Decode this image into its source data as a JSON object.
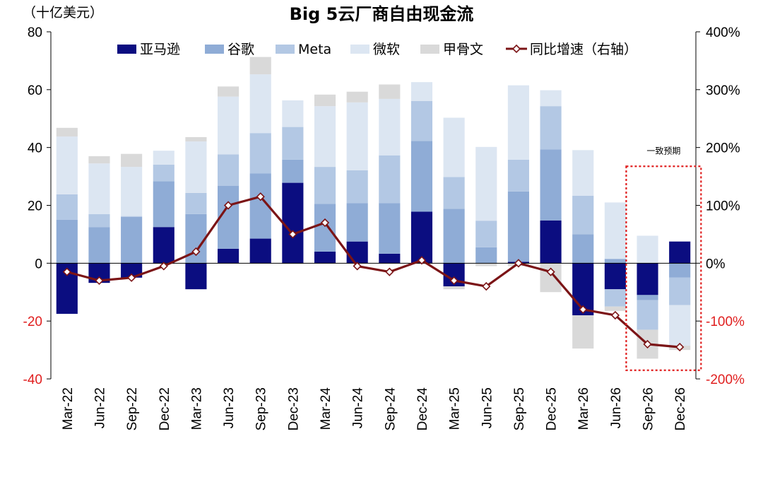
{
  "chart_data": {
    "type": "bar",
    "title": "Big 5云厂商自由现金流",
    "unit_label": "（十亿美元）",
    "categories": [
      "Mar-22",
      "Jun-22",
      "Sep-22",
      "Dec-22",
      "Mar-23",
      "Jun-23",
      "Sep-23",
      "Dec-23",
      "Mar-24",
      "Jun-24",
      "Sep-24",
      "Dec-24",
      "Mar-25",
      "Jun-25",
      "Sep-25",
      "Dec-25",
      "Mar-26",
      "Jun-26",
      "Sep-26",
      "Dec-26"
    ],
    "stacked": true,
    "series": [
      {
        "name": "亚马逊",
        "color": "#0b0d80",
        "values": [
          -17.5,
          -6.8,
          -5.0,
          12.5,
          -9.0,
          5.0,
          8.5,
          27.8,
          4.0,
          7.5,
          3.3,
          17.8,
          -8.0,
          0.0,
          0.5,
          14.8,
          -18.0,
          -9.0,
          -11.0,
          7.5
        ]
      },
      {
        "name": "谷歌",
        "color": "#8facd6",
        "values": [
          15.0,
          12.5,
          16.0,
          15.8,
          17.0,
          21.8,
          22.5,
          8.0,
          16.5,
          13.3,
          17.5,
          24.5,
          18.8,
          5.5,
          24.3,
          24.5,
          10.0,
          1.5,
          -1.8,
          -5.0
        ]
      },
      {
        "name": "Meta",
        "color": "#b3c8e4",
        "values": [
          8.8,
          4.5,
          0.3,
          5.8,
          7.3,
          10.8,
          14.0,
          11.3,
          12.8,
          11.3,
          16.5,
          13.8,
          11.0,
          9.2,
          11.0,
          15.0,
          13.3,
          -6.0,
          -10.2,
          -9.5
        ]
      },
      {
        "name": "微软",
        "color": "#dce6f2",
        "values": [
          20.0,
          17.5,
          17.0,
          4.8,
          17.8,
          20.0,
          20.3,
          9.2,
          21.0,
          23.5,
          19.5,
          6.5,
          20.5,
          25.5,
          25.7,
          5.5,
          15.8,
          19.5,
          9.5,
          -14.0
        ]
      },
      {
        "name": "甲骨文",
        "color": "#d9d9d9",
        "values": [
          3.0,
          2.5,
          4.5,
          -0.3,
          1.5,
          3.5,
          6.0,
          -0.3,
          4.0,
          3.7,
          5.0,
          -0.3,
          -1.0,
          -1.0,
          -1.0,
          -10.0,
          -11.5,
          -1.5,
          -10.0,
          -1.5
        ]
      }
    ],
    "line_series": {
      "name": "同比增速（右轴）",
      "axis": "right",
      "color": "#7b1416",
      "values": [
        -15,
        -30,
        -25,
        -5,
        20,
        100,
        115,
        50,
        70,
        -5,
        -15,
        5,
        -30,
        -40,
        0,
        -15,
        -80,
        -90,
        -140,
        -145
      ]
    },
    "y_left": {
      "min": -40,
      "max": 80,
      "ticks": [
        -40,
        -20,
        0,
        20,
        40,
        60,
        80
      ],
      "tick_labels": [
        "-40",
        "-20",
        "0",
        "20",
        "40",
        "60",
        "80"
      ]
    },
    "y_right": {
      "min": -200,
      "max": 400,
      "ticks": [
        -200,
        -100,
        0,
        100,
        200,
        300,
        400
      ],
      "tick_labels": [
        "-200%",
        "-100%",
        "0%",
        "100%",
        "200%",
        "300%",
        "400%"
      ]
    },
    "negative_tick_color": "#e01f1f",
    "annotation": {
      "label": "一致预期",
      "categories": [
        "Sep-26",
        "Dec-26"
      ],
      "color": "#e01f1f"
    },
    "legend_position": "top",
    "grid": false
  }
}
